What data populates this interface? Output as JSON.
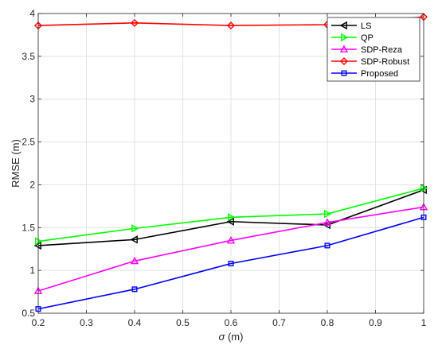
{
  "chart_data": {
    "type": "line",
    "title": "",
    "xlabel_symbol": "σ",
    "xlabel_unit": " (m)",
    "ylabel": "RMSE (m)",
    "xlim": [
      0.2,
      1.0
    ],
    "ylim": [
      0.5,
      4.0
    ],
    "xticks": [
      0.2,
      0.3,
      0.4,
      0.5,
      0.6,
      0.7,
      0.8,
      0.9,
      1.0
    ],
    "xtick_labels": [
      "0.2",
      "0.3",
      "0.4",
      "0.5",
      "0.6",
      "0.7",
      "0.8",
      "0.9",
      "1"
    ],
    "yticks": [
      0.5,
      1.0,
      1.5,
      2.0,
      2.5,
      3.0,
      3.5,
      4.0
    ],
    "ytick_labels": [
      "0.5",
      "1",
      "1.5",
      "2",
      "2.5",
      "3",
      "3.5",
      "4"
    ],
    "grid": true,
    "legend_position": "top-right",
    "x": [
      0.2,
      0.4,
      0.6,
      0.8,
      1.0
    ],
    "series": [
      {
        "name": "LS",
        "values": [
          1.29,
          1.36,
          1.57,
          1.53,
          1.94
        ],
        "color": "#000000",
        "marker": "triangle-left"
      },
      {
        "name": "QP",
        "values": [
          1.34,
          1.49,
          1.62,
          1.66,
          1.96
        ],
        "color": "#00ff00",
        "marker": "triangle-right"
      },
      {
        "name": "SDP-Reza",
        "values": [
          0.76,
          1.11,
          1.35,
          1.56,
          1.74
        ],
        "color": "#ff00ff",
        "marker": "triangle-up"
      },
      {
        "name": "SDP-Robust",
        "values": [
          3.86,
          3.89,
          3.86,
          3.87,
          3.96
        ],
        "color": "#ff0000",
        "marker": "diamond"
      },
      {
        "name": "Proposed",
        "values": [
          0.55,
          0.78,
          1.08,
          1.29,
          1.62
        ],
        "color": "#0000ff",
        "marker": "square"
      }
    ]
  }
}
